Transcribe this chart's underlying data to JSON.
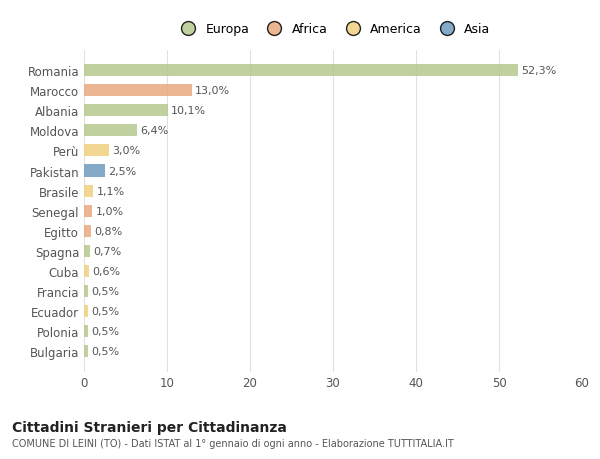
{
  "countries": [
    "Romania",
    "Marocco",
    "Albania",
    "Moldova",
    "Perù",
    "Pakistan",
    "Brasile",
    "Senegal",
    "Egitto",
    "Spagna",
    "Cuba",
    "Francia",
    "Ecuador",
    "Polonia",
    "Bulgaria"
  ],
  "values": [
    52.3,
    13.0,
    10.1,
    6.4,
    3.0,
    2.5,
    1.1,
    1.0,
    0.8,
    0.7,
    0.6,
    0.5,
    0.5,
    0.5,
    0.5
  ],
  "labels": [
    "52,3%",
    "13,0%",
    "10,1%",
    "6,4%",
    "3,0%",
    "2,5%",
    "1,1%",
    "1,0%",
    "0,8%",
    "0,7%",
    "0,6%",
    "0,5%",
    "0,5%",
    "0,5%",
    "0,5%"
  ],
  "colors": [
    "#b5c98e",
    "#e8a97e",
    "#b5c98e",
    "#b5c98e",
    "#f0d080",
    "#6e9bbf",
    "#f0d080",
    "#e8a97e",
    "#e8a97e",
    "#b5c98e",
    "#f0d080",
    "#b5c98e",
    "#f0d080",
    "#b5c98e",
    "#b5c98e"
  ],
  "legend_labels": [
    "Europa",
    "Africa",
    "America",
    "Asia"
  ],
  "legend_colors": [
    "#b5c98e",
    "#e8a97e",
    "#f0d080",
    "#6e9bbf"
  ],
  "title": "Cittadini Stranieri per Cittadinanza",
  "subtitle": "COMUNE DI LEINI (TO) - Dati ISTAT al 1° gennaio di ogni anno - Elaborazione TUTTITALIA.IT",
  "xlim": [
    0,
    60
  ],
  "xticks": [
    0,
    10,
    20,
    30,
    40,
    50,
    60
  ],
  "background_color": "#ffffff",
  "grid_color": "#e0e0e0"
}
